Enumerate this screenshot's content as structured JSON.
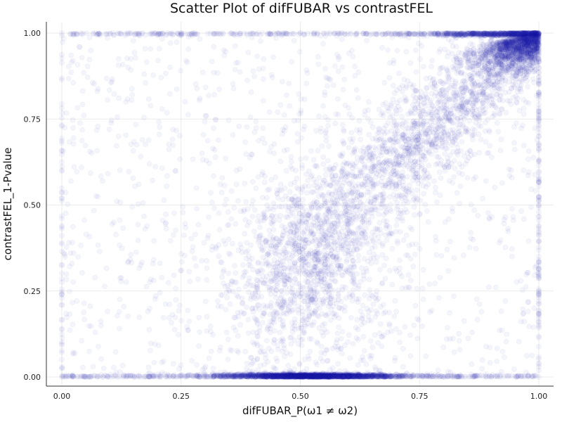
{
  "chart_data": {
    "type": "scatter",
    "title": "Scatter Plot of difFUBAR vs contrastFEL",
    "xlabel": "difFUBAR_P(ω1 ≠ ω2)",
    "ylabel": "contrastFEL_1-Pvalue",
    "xlim": [
      0.0,
      1.0
    ],
    "ylim": [
      0.0,
      1.0
    ],
    "xticks": [
      "0.00",
      "0.25",
      "0.50",
      "0.75",
      "1.00"
    ],
    "yticks": [
      "0.00",
      "0.25",
      "0.50",
      "0.75",
      "1.00"
    ],
    "grid": true,
    "legend": "none",
    "marker_color": "#1f1fa8",
    "marker_opacity": 0.05,
    "series": [
      {
        "values_description_points": [
          [
            0.0,
            0.0
          ],
          [
            0.02,
            0.0
          ],
          [
            0.05,
            0.0
          ],
          [
            0.1,
            0.0
          ],
          [
            0.2,
            0.0
          ],
          [
            0.3,
            0.0
          ],
          [
            0.4,
            0.0
          ],
          [
            0.45,
            0.0
          ],
          [
            0.48,
            0.0
          ],
          [
            0.5,
            0.0
          ],
          [
            0.52,
            0.0
          ],
          [
            0.55,
            0.0
          ],
          [
            0.6,
            0.0
          ],
          [
            0.65,
            0.0
          ],
          [
            0.7,
            0.0
          ],
          [
            0.8,
            0.0
          ],
          [
            0.9,
            0.0
          ],
          [
            1.0,
            0.0
          ],
          [
            0.0,
            1.0
          ],
          [
            0.25,
            1.0
          ],
          [
            0.5,
            1.0
          ],
          [
            0.75,
            1.0
          ],
          [
            0.9,
            0.98
          ],
          [
            0.95,
            0.99
          ],
          [
            1.0,
            1.0
          ],
          [
            0.85,
            0.9
          ],
          [
            0.8,
            0.82
          ],
          [
            0.75,
            0.7
          ],
          [
            0.7,
            0.62
          ],
          [
            0.6,
            0.5
          ],
          [
            0.55,
            0.45
          ],
          [
            0.5,
            0.38
          ],
          [
            0.45,
            0.3
          ],
          [
            0.4,
            0.2
          ],
          [
            1.0,
            0.5
          ],
          [
            1.0,
            0.25
          ]
        ]
      }
    ]
  }
}
